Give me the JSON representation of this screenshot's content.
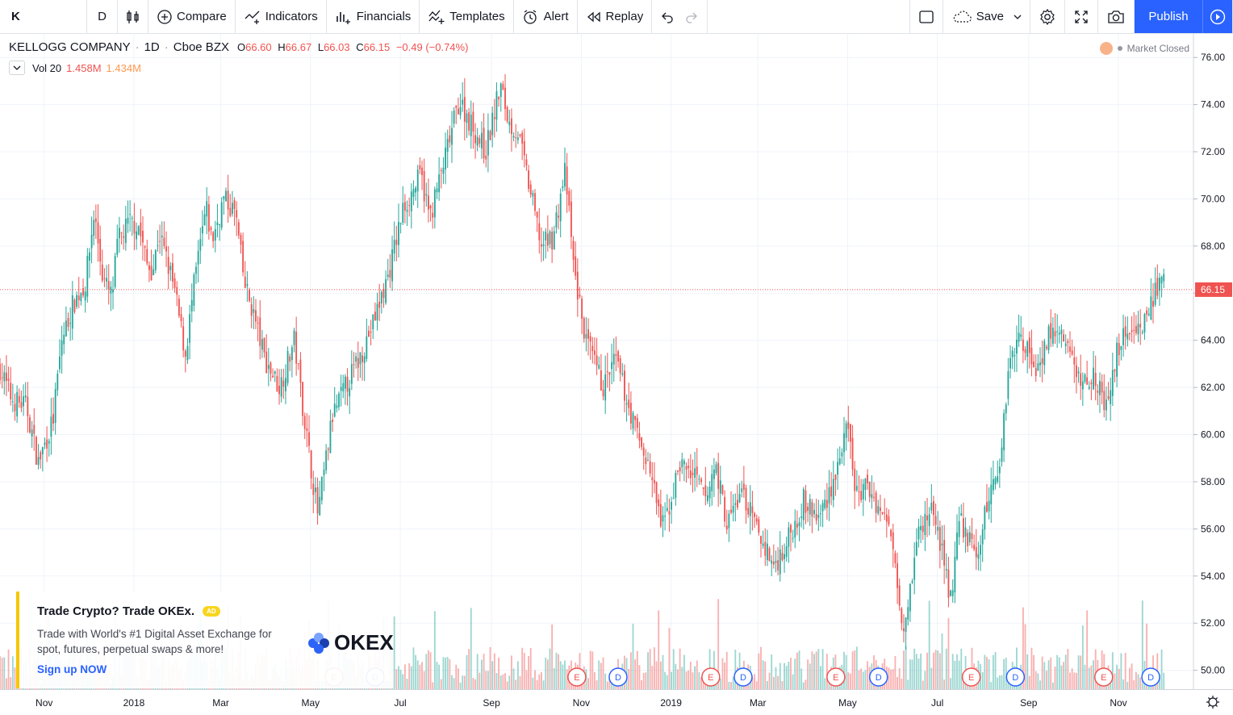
{
  "toolbar": {
    "symbol": "K",
    "interval": "D",
    "compare": "Compare",
    "indicators": "Indicators",
    "financials": "Financials",
    "templates": "Templates",
    "alert": "Alert",
    "replay": "Replay",
    "save": "Save",
    "publish": "Publish"
  },
  "legend": {
    "title": "KELLOGG COMPANY",
    "interval": "1D",
    "exchange": "Cboe BZX",
    "open_label": "O",
    "open": "66.60",
    "high_label": "H",
    "high": "66.67",
    "low_label": "L",
    "low": "66.03",
    "close_label": "C",
    "close": "66.15",
    "change": "−0.49 (−0.74%)",
    "vol_label": "Vol 20",
    "vol_value": "1.458M",
    "vol_ma": "1.434M",
    "market_status": "Market Closed"
  },
  "colors": {
    "up": "#26a69a",
    "down": "#ef5350",
    "accent": "#2962ff",
    "price_line": "#ef5350"
  },
  "ad": {
    "headline": "Trade Crypto? Trade OKEx.",
    "badge": "AD",
    "body": "Trade with World's #1 Digital Asset Exchange for spot, futures, perpetual swaps & more!",
    "cta": "Sign up NOW",
    "brand": "OKEX"
  },
  "chart_data": {
    "type": "candlestick",
    "y_axis_ticks": [
      50,
      52,
      54,
      56,
      58,
      60,
      62,
      64,
      66,
      68,
      70,
      72,
      74,
      76
    ],
    "y_tick_labels": [
      "50.00",
      "52.00",
      "54.00",
      "56.00",
      "58.00",
      "60.00",
      "62.00",
      "64.00",
      "66.00",
      "68.00",
      "70.00",
      "72.00",
      "74.00",
      "76.00"
    ],
    "ylim": [
      49.2,
      77.0
    ],
    "last_price_label": "66.15",
    "last_price": 66.15,
    "x_tick_labels": [
      "Nov",
      "2018",
      "Mar",
      "May",
      "Jul",
      "Sep",
      "Nov",
      "2019",
      "Mar",
      "May",
      "Jul",
      "Sep",
      "Nov"
    ],
    "x_tick_days": [
      0,
      61,
      120,
      181,
      242,
      304,
      365,
      426,
      485,
      546,
      607,
      669,
      730
    ],
    "x_range_days": [
      -30,
      781
    ],
    "close_path": [
      [
        -30,
        62.8
      ],
      [
        -22,
        61.5
      ],
      [
        -12,
        61.2
      ],
      [
        -4,
        58.8
      ],
      [
        6,
        60.6
      ],
      [
        12,
        64.0
      ],
      [
        20,
        65.6
      ],
      [
        28,
        66.4
      ],
      [
        34,
        69.4
      ],
      [
        40,
        66.6
      ],
      [
        46,
        65.8
      ],
      [
        50,
        68.2
      ],
      [
        58,
        69.0
      ],
      [
        64,
        68.9
      ],
      [
        70,
        67.2
      ],
      [
        74,
        67.0
      ],
      [
        78,
        68.6
      ],
      [
        88,
        66.3
      ],
      [
        96,
        63.4
      ],
      [
        102,
        66.4
      ],
      [
        110,
        69.6
      ],
      [
        114,
        68.2
      ],
      [
        122,
        70.0
      ],
      [
        130,
        69.4
      ],
      [
        136,
        66.4
      ],
      [
        142,
        65.2
      ],
      [
        150,
        63.2
      ],
      [
        160,
        62.0
      ],
      [
        170,
        64.0
      ],
      [
        180,
        59.2
      ],
      [
        186,
        56.6
      ],
      [
        196,
        60.8
      ],
      [
        206,
        62.2
      ],
      [
        214,
        63.2
      ],
      [
        224,
        64.8
      ],
      [
        234,
        66.8
      ],
      [
        244,
        69.6
      ],
      [
        256,
        71.0
      ],
      [
        262,
        69.2
      ],
      [
        272,
        71.6
      ],
      [
        282,
        74.2
      ],
      [
        290,
        73.2
      ],
      [
        300,
        72.0
      ],
      [
        310,
        74.8
      ],
      [
        316,
        73.2
      ],
      [
        322,
        72.8
      ],
      [
        330,
        70.4
      ],
      [
        338,
        68.0
      ],
      [
        346,
        68.4
      ],
      [
        354,
        71.2
      ],
      [
        360,
        67.0
      ],
      [
        368,
        64.0
      ],
      [
        380,
        62.0
      ],
      [
        388,
        63.2
      ],
      [
        400,
        60.6
      ],
      [
        412,
        58.4
      ],
      [
        420,
        56.0
      ],
      [
        426,
        57.2
      ],
      [
        432,
        58.8
      ],
      [
        442,
        58.2
      ],
      [
        450,
        57.2
      ],
      [
        456,
        58.8
      ],
      [
        464,
        56.2
      ],
      [
        474,
        57.6
      ],
      [
        484,
        56.0
      ],
      [
        496,
        54.4
      ],
      [
        506,
        55.6
      ],
      [
        516,
        57.2
      ],
      [
        526,
        56.4
      ],
      [
        536,
        58.0
      ],
      [
        546,
        60.2
      ],
      [
        552,
        57.4
      ],
      [
        560,
        57.8
      ],
      [
        568,
        56.8
      ],
      [
        576,
        55.8
      ],
      [
        584,
        51.8
      ],
      [
        594,
        55.8
      ],
      [
        604,
        57.0
      ],
      [
        616,
        53.0
      ],
      [
        622,
        56.4
      ],
      [
        634,
        54.8
      ],
      [
        642,
        57.4
      ],
      [
        650,
        59.0
      ],
      [
        656,
        63.4
      ],
      [
        664,
        64.2
      ],
      [
        674,
        62.8
      ],
      [
        684,
        64.4
      ],
      [
        694,
        64.0
      ],
      [
        704,
        62.2
      ],
      [
        714,
        62.6
      ],
      [
        722,
        61.0
      ],
      [
        730,
        63.8
      ],
      [
        738,
        64.6
      ],
      [
        746,
        64.6
      ],
      [
        756,
        66.2
      ],
      [
        762,
        66.4
      ]
    ],
    "earnings_markers": [
      {
        "label": "E",
        "day": 197
      },
      {
        "label": "D",
        "day": 225
      },
      {
        "label": "E",
        "day": 362
      },
      {
        "label": "D",
        "day": 390
      },
      {
        "label": "E",
        "day": 453
      },
      {
        "label": "D",
        "day": 475
      },
      {
        "label": "E",
        "day": 538
      },
      {
        "label": "D",
        "day": 567
      },
      {
        "label": "E",
        "day": 630
      },
      {
        "label": "D",
        "day": 660
      },
      {
        "label": "E",
        "day": 720
      },
      {
        "label": "D",
        "day": 752
      }
    ]
  }
}
